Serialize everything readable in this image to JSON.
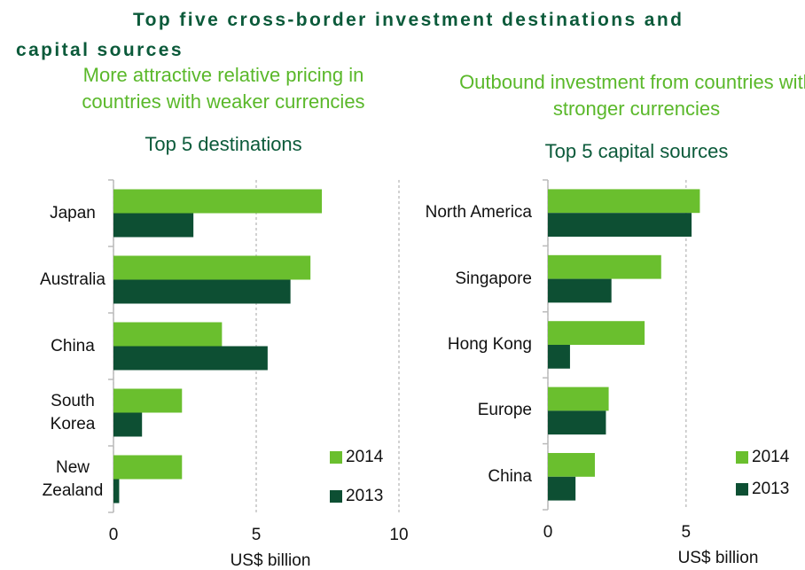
{
  "title": "Top five cross-border investment destinations and capital sources",
  "chart_data": [
    {
      "type": "bar",
      "orientation": "horizontal",
      "subtitle": "More attractive relative pricing in countries with weaker currencies",
      "title": "Top 5 destinations",
      "categories": [
        "Japan",
        "Australia",
        "China",
        "South Korea",
        "New Zealand"
      ],
      "series": [
        {
          "name": "2014",
          "color": "#6abf2e",
          "values": [
            7.3,
            6.9,
            3.8,
            2.4,
            2.4
          ]
        },
        {
          "name": "2013",
          "color": "#0d4f33",
          "values": [
            2.8,
            6.2,
            5.4,
            1.0,
            0.2
          ]
        }
      ],
      "xlim": [
        0,
        10
      ],
      "xticks": [
        0,
        5,
        10
      ],
      "xlabel": "US$ billion",
      "grid": true,
      "legend": "lower right"
    },
    {
      "type": "bar",
      "orientation": "horizontal",
      "subtitle": "Outbound investment from countries with stronger currencies",
      "title": "Top 5 capital sources",
      "categories": [
        "North America",
        "Singapore",
        "Hong Kong",
        "Europe",
        "China"
      ],
      "series": [
        {
          "name": "2014",
          "color": "#6abf2e",
          "values": [
            5.5,
            4.1,
            3.5,
            2.2,
            1.7
          ]
        },
        {
          "name": "2013",
          "color": "#0d4f33",
          "values": [
            5.2,
            2.3,
            0.8,
            2.1,
            1.0
          ]
        }
      ],
      "xlim": [
        0,
        6
      ],
      "xticks": [
        0,
        5
      ],
      "xlabel": "US$ billion",
      "grid": true,
      "legend": "lower right"
    }
  ]
}
